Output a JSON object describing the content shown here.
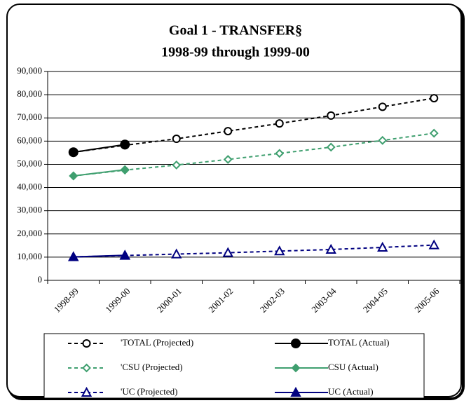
{
  "chart_data": {
    "type": "line",
    "title": "Goal 1 - TRANSFER§",
    "subtitle": "1998-99 through 1999-00",
    "categories": [
      "1998-99",
      "1999-00",
      "2000-01",
      "2001-02",
      "2002-03",
      "2003-04",
      "2004-05",
      "2005-06"
    ],
    "ylim": [
      0,
      90000
    ],
    "yticks": [
      0,
      {
        "value": 10000,
        "label": "10,000"
      },
      {
        "value": 20000,
        "label": "20,000"
      },
      {
        "value": 30000,
        "label": "30,000"
      },
      {
        "value": 40000,
        "label": "40,000"
      },
      {
        "value": 50000,
        "label": "50,000"
      },
      {
        "value": 60000,
        "label": "60,000"
      },
      {
        "value": 70000,
        "label": "70,000"
      },
      {
        "value": 80000,
        "label": "80,000"
      },
      {
        "value": 90000,
        "label": "90,000"
      }
    ],
    "grid": true,
    "legend": "bottom",
    "series": [
      {
        "name": "'TOTAL (Projected)",
        "color": "#000000",
        "marker": "circle",
        "dashed": true,
        "values": [
          55200,
          58200,
          61000,
          64300,
          67600,
          71000,
          74800,
          78500
        ]
      },
      {
        "name": "TOTAL (Actual)",
        "color": "#000000",
        "marker": "circle",
        "dashed": false,
        "values": [
          55200,
          58500,
          null,
          null,
          null,
          null,
          null,
          null
        ]
      },
      {
        "name": "'CSU (Projected)",
        "color": "#3f9f6f",
        "marker": "diamond",
        "dashed": true,
        "values": [
          45000,
          47500,
          49700,
          52100,
          54700,
          57400,
          60300,
          63400
        ]
      },
      {
        "name": "CSU (Actual)",
        "color": "#3f9f6f",
        "marker": "diamond",
        "dashed": false,
        "values": [
          45000,
          47700,
          null,
          null,
          null,
          null,
          null,
          null
        ]
      },
      {
        "name": "'UC (Projected)",
        "color": "#000080",
        "marker": "triangle",
        "dashed": true,
        "values": [
          10100,
          10700,
          11300,
          11900,
          12600,
          13300,
          14200,
          15200
        ]
      },
      {
        "name": "UC (Actual)",
        "color": "#000080",
        "marker": "triangle",
        "dashed": false,
        "values": [
          10100,
          10800,
          null,
          null,
          null,
          null,
          null,
          null
        ]
      }
    ]
  }
}
